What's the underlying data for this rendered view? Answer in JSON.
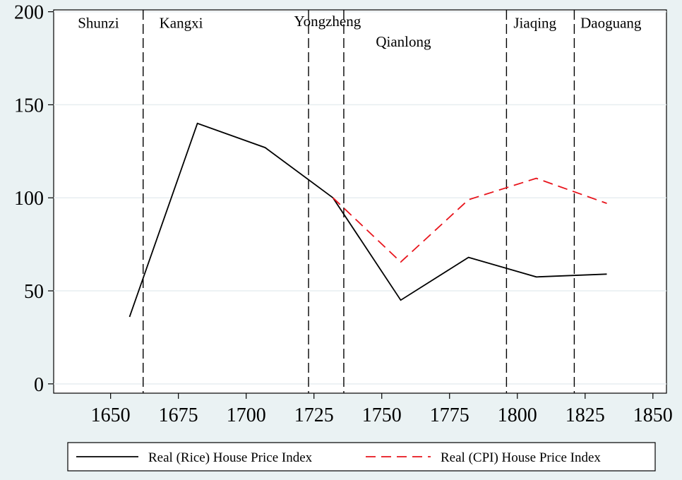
{
  "chart_data": {
    "type": "line",
    "title": "",
    "xlabel": "",
    "ylabel": "",
    "xlim": [
      1629,
      1855
    ],
    "ylim": [
      -5,
      201
    ],
    "xticks": [
      "1650",
      "1675",
      "1700",
      "1725",
      "1750",
      "1775",
      "1800",
      "1825",
      "1850"
    ],
    "yticks": [
      "0",
      "50",
      "100",
      "150",
      "200"
    ],
    "grid": true,
    "legend_position": "bottom",
    "series": [
      {
        "name": "Real (Rice) House Price Index",
        "color": "#000000",
        "style": "solid",
        "points": [
          [
            1657,
            36
          ],
          [
            1682,
            140
          ],
          [
            1707,
            127
          ],
          [
            1732,
            100
          ],
          [
            1757,
            45
          ],
          [
            1782,
            68
          ],
          [
            1807,
            57.5
          ],
          [
            1833,
            59
          ]
        ]
      },
      {
        "name": "Real (CPI) House Price Index",
        "color": "#e8141c",
        "style": "dashed",
        "points": [
          [
            1732,
            100
          ],
          [
            1757,
            65.5
          ],
          [
            1782,
            99
          ],
          [
            1807,
            110.5
          ],
          [
            1833,
            97
          ]
        ]
      }
    ],
    "reign_boundaries": [
      1662,
      1723,
      1736,
      1796,
      1821
    ],
    "reigns": [
      {
        "name": "Shunzi",
        "x": 1645.5,
        "y": 194
      },
      {
        "name": "Kangxi",
        "x": 1676,
        "y": 194
      },
      {
        "name": "Yongzheng",
        "x": 1730,
        "y": 195
      },
      {
        "name": "Qianlong",
        "x": 1758,
        "y": 184
      },
      {
        "name": "Jiaqing",
        "x": 1806.5,
        "y": 194
      },
      {
        "name": "Daoguang",
        "x": 1834.5,
        "y": 194
      }
    ]
  }
}
